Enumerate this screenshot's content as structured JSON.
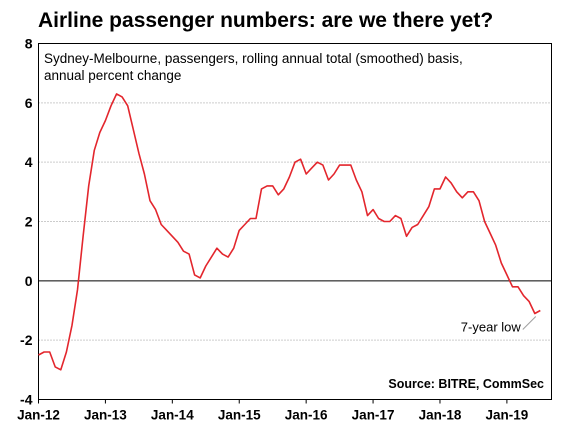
{
  "chart_data": {
    "type": "line",
    "title": "Airline passenger numbers: are we there yet?",
    "subtitle_lines": [
      "Sydney-Melbourne, passengers, rolling annual total (smoothed) basis,",
      "annual percent change"
    ],
    "xlabel": "",
    "ylabel": "",
    "ylim": [
      -4,
      8
    ],
    "yticks": [
      8,
      6,
      4,
      2,
      0,
      -2,
      -4
    ],
    "xlim": [
      "2012-01",
      "2019-09"
    ],
    "xticks": [
      "Jan-12",
      "Jan-13",
      "Jan-14",
      "Jan-15",
      "Jan-16",
      "Jan-17",
      "Jan-18",
      "Jan-19"
    ],
    "grid": true,
    "series": [
      {
        "color": "#e3262d",
        "points": [
          [
            "2012-01",
            -2.5
          ],
          [
            "2012-02",
            -2.4
          ],
          [
            "2012-03",
            -2.4
          ],
          [
            "2012-04",
            -2.9
          ],
          [
            "2012-05",
            -3.0
          ],
          [
            "2012-06",
            -2.4
          ],
          [
            "2012-07",
            -1.5
          ],
          [
            "2012-08",
            -0.3
          ],
          [
            "2012-09",
            1.5
          ],
          [
            "2012-10",
            3.2
          ],
          [
            "2012-11",
            4.4
          ],
          [
            "2012-12",
            5.0
          ],
          [
            "2013-01",
            5.4
          ],
          [
            "2013-02",
            5.9
          ],
          [
            "2013-03",
            6.3
          ],
          [
            "2013-04",
            6.2
          ],
          [
            "2013-05",
            5.9
          ],
          [
            "2013-06",
            5.1
          ],
          [
            "2013-07",
            4.3
          ],
          [
            "2013-08",
            3.6
          ],
          [
            "2013-09",
            2.7
          ],
          [
            "2013-10",
            2.4
          ],
          [
            "2013-11",
            1.9
          ],
          [
            "2013-12",
            1.7
          ],
          [
            "2014-01",
            1.5
          ],
          [
            "2014-02",
            1.3
          ],
          [
            "2014-03",
            1.0
          ],
          [
            "2014-04",
            0.9
          ],
          [
            "2014-05",
            0.2
          ],
          [
            "2014-06",
            0.1
          ],
          [
            "2014-07",
            0.5
          ],
          [
            "2014-08",
            0.8
          ],
          [
            "2014-09",
            1.1
          ],
          [
            "2014-10",
            0.9
          ],
          [
            "2014-11",
            0.8
          ],
          [
            "2014-12",
            1.1
          ],
          [
            "2015-01",
            1.7
          ],
          [
            "2015-02",
            1.9
          ],
          [
            "2015-03",
            2.1
          ],
          [
            "2015-04",
            2.1
          ],
          [
            "2015-05",
            3.1
          ],
          [
            "2015-06",
            3.2
          ],
          [
            "2015-07",
            3.2
          ],
          [
            "2015-08",
            2.9
          ],
          [
            "2015-09",
            3.1
          ],
          [
            "2015-10",
            3.5
          ],
          [
            "2015-11",
            4.0
          ],
          [
            "2015-12",
            4.1
          ],
          [
            "2016-01",
            3.6
          ],
          [
            "2016-02",
            3.8
          ],
          [
            "2016-03",
            4.0
          ],
          [
            "2016-04",
            3.9
          ],
          [
            "2016-05",
            3.4
          ],
          [
            "2016-06",
            3.6
          ],
          [
            "2016-07",
            3.9
          ],
          [
            "2016-08",
            3.9
          ],
          [
            "2016-09",
            3.9
          ],
          [
            "2016-10",
            3.4
          ],
          [
            "2016-11",
            3.0
          ],
          [
            "2016-12",
            2.2
          ],
          [
            "2017-01",
            2.4
          ],
          [
            "2017-02",
            2.1
          ],
          [
            "2017-03",
            2.0
          ],
          [
            "2017-04",
            2.0
          ],
          [
            "2017-05",
            2.2
          ],
          [
            "2017-06",
            2.1
          ],
          [
            "2017-07",
            1.5
          ],
          [
            "2017-08",
            1.8
          ],
          [
            "2017-09",
            1.9
          ],
          [
            "2017-10",
            2.2
          ],
          [
            "2017-11",
            2.5
          ],
          [
            "2017-12",
            3.1
          ],
          [
            "2018-01",
            3.1
          ],
          [
            "2018-02",
            3.5
          ],
          [
            "2018-03",
            3.3
          ],
          [
            "2018-04",
            3.0
          ],
          [
            "2018-05",
            2.8
          ],
          [
            "2018-06",
            3.0
          ],
          [
            "2018-07",
            3.0
          ],
          [
            "2018-08",
            2.7
          ],
          [
            "2018-09",
            2.0
          ],
          [
            "2018-10",
            1.6
          ],
          [
            "2018-11",
            1.2
          ],
          [
            "2018-12",
            0.6
          ],
          [
            "2019-01",
            0.2
          ],
          [
            "2019-02",
            -0.2
          ],
          [
            "2019-03",
            -0.2
          ],
          [
            "2019-04",
            -0.5
          ],
          [
            "2019-05",
            -0.7
          ],
          [
            "2019-06",
            -1.1
          ],
          [
            "2019-07",
            -1.0
          ]
        ]
      }
    ],
    "annotations": [
      {
        "text": "7-year low",
        "x": "2019-06",
        "y": -1.1
      }
    ],
    "source": "Source: BITRE, CommSec"
  }
}
